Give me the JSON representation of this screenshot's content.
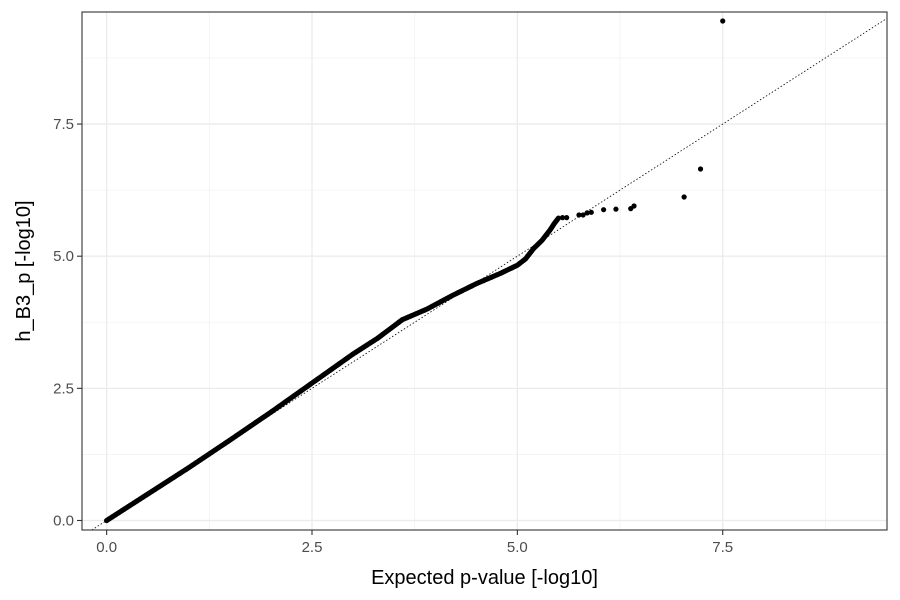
{
  "chart_data": {
    "type": "scatter",
    "title": "",
    "xlabel": "Expected p-value [-log10]",
    "ylabel": "h_B3_p [-log10]",
    "xlim": [
      -0.3,
      9.5
    ],
    "ylim": [
      -0.18,
      9.62
    ],
    "x_ticks": [
      0.0,
      2.5,
      5.0,
      7.5
    ],
    "y_ticks": [
      0.0,
      2.5,
      5.0,
      7.5
    ],
    "x_tick_labels": [
      "0.0",
      "2.5",
      "5.0",
      "7.5"
    ],
    "y_tick_labels": [
      "0.0",
      "2.5",
      "5.0",
      "7.5"
    ],
    "grid": true,
    "reference_line": "y = x (dotted)",
    "point_color": "#000000",
    "curve_points": [
      [
        0.0,
        0.0
      ],
      [
        0.5,
        0.5
      ],
      [
        1.0,
        1.0
      ],
      [
        1.5,
        1.52
      ],
      [
        2.0,
        2.05
      ],
      [
        2.5,
        2.6
      ],
      [
        3.0,
        3.15
      ],
      [
        3.3,
        3.45
      ],
      [
        3.6,
        3.8
      ],
      [
        3.9,
        4.0
      ],
      [
        4.2,
        4.25
      ],
      [
        4.5,
        4.48
      ],
      [
        4.8,
        4.68
      ],
      [
        5.0,
        4.83
      ],
      [
        5.1,
        4.95
      ],
      [
        5.2,
        5.15
      ],
      [
        5.3,
        5.3
      ],
      [
        5.4,
        5.5
      ],
      [
        5.45,
        5.62
      ],
      [
        5.5,
        5.72
      ]
    ],
    "outlier_points": [
      [
        5.55,
        5.73
      ],
      [
        5.6,
        5.73
      ],
      [
        5.75,
        5.78
      ],
      [
        5.8,
        5.78
      ],
      [
        5.85,
        5.82
      ],
      [
        5.9,
        5.83
      ],
      [
        6.05,
        5.88
      ],
      [
        6.2,
        5.89
      ],
      [
        6.38,
        5.9
      ],
      [
        6.42,
        5.95
      ],
      [
        7.03,
        6.12
      ],
      [
        7.23,
        6.65
      ],
      [
        7.5,
        9.45
      ]
    ]
  }
}
